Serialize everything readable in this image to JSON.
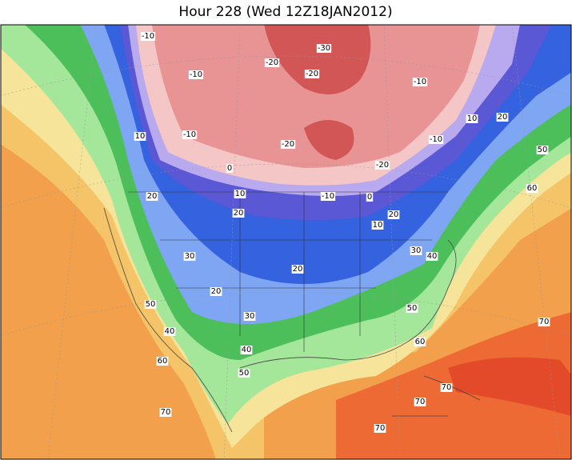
{
  "map": {
    "title": "Hour 228 (Wed 12Z18JAN2012)",
    "contour_labels": [
      "-10",
      "-30",
      "-20",
      "-10",
      "-20",
      "-10",
      "10",
      "20",
      "10",
      "-10",
      "-20",
      "-10",
      "50",
      "0",
      "-20",
      "60",
      "20",
      "10",
      "-10",
      "0",
      "20",
      "20",
      "10",
      "30",
      "40",
      "30",
      "20",
      "20",
      "50",
      "50",
      "30",
      "70",
      "40",
      "60",
      "40",
      "60",
      "50",
      "70",
      "70",
      "70",
      "70"
    ]
  }
}
